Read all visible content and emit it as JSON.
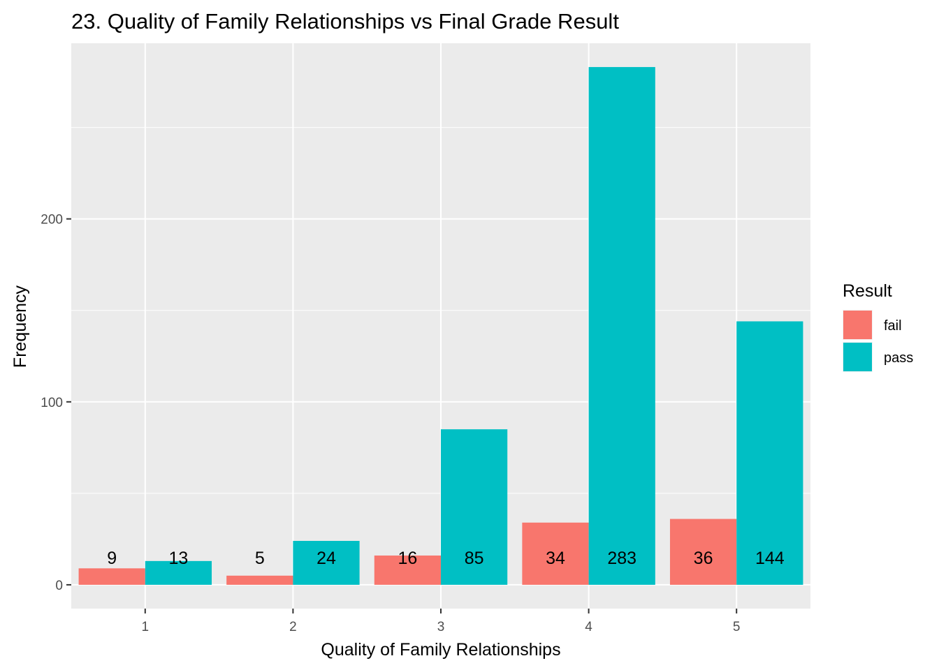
{
  "chart_data": {
    "type": "bar",
    "title": "23. Quality of Family Relationships vs Final Grade Result",
    "xlabel": "Quality of Family Relationships",
    "ylabel": "Frequency",
    "categories": [
      "1",
      "2",
      "3",
      "4",
      "5"
    ],
    "series": [
      {
        "name": "fail",
        "color": "#F8766D",
        "values": [
          9,
          5,
          16,
          34,
          36
        ]
      },
      {
        "name": "pass",
        "color": "#00BFC4",
        "values": [
          13,
          24,
          85,
          283,
          144
        ]
      }
    ],
    "yticks": [
      0,
      100,
      200
    ],
    "ylim": [
      -13,
      296
    ],
    "grid": true,
    "legend": {
      "title": "Result",
      "position": "right"
    },
    "panel_background": "#EBEBEB"
  }
}
